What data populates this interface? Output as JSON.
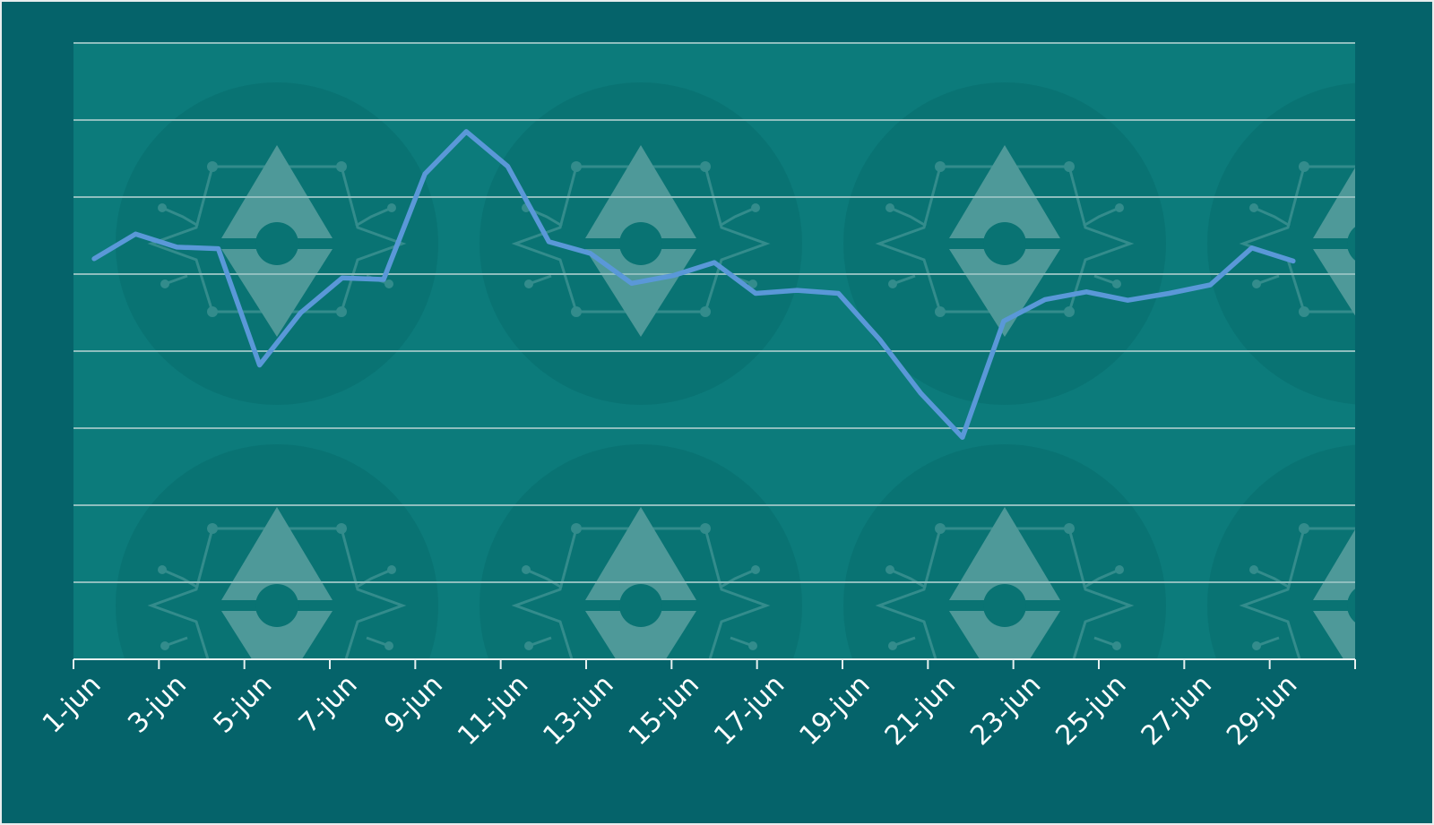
{
  "colors": {
    "frame_background": "#05636a",
    "plot_background": "#0c7b7b",
    "watermark": "#5c9f9f",
    "gridline": "#8fbebe",
    "axis": "#e6f0f0",
    "line": "#5a98d8",
    "tick_text": "#ffffff"
  },
  "watermark_icon": "ethereum-logo-icon",
  "chart_data": {
    "type": "line",
    "title": "",
    "xlabel": "",
    "ylabel": "",
    "grid": true,
    "y_tick_labels_shown": false,
    "ylim": [
      0,
      8
    ],
    "x_tick_labels": [
      "1-jun",
      "3-jun",
      "5-jun",
      "7-jun",
      "9-jun",
      "11-jun",
      "13-jun",
      "15-jun",
      "17-jun",
      "19-jun",
      "21-jun",
      "23-jun",
      "25-jun",
      "27-jun",
      "29-jun"
    ],
    "series": [
      {
        "x": [
          1,
          2,
          3,
          4,
          5,
          6,
          7,
          8,
          9,
          10,
          11,
          12,
          13,
          14,
          15,
          16,
          17,
          18,
          19,
          20,
          21,
          22,
          23,
          24,
          25,
          26,
          27,
          28,
          29,
          30
        ],
        "y": [
          5.2,
          5.52,
          5.35,
          5.33,
          3.82,
          4.5,
          4.95,
          4.93,
          6.3,
          6.85,
          6.4,
          5.42,
          5.27,
          4.88,
          4.98,
          5.15,
          4.75,
          4.79,
          4.75,
          4.15,
          3.45,
          2.88,
          4.39,
          4.67,
          4.77,
          4.66,
          4.75,
          4.86,
          5.34,
          5.17
        ]
      }
    ]
  }
}
